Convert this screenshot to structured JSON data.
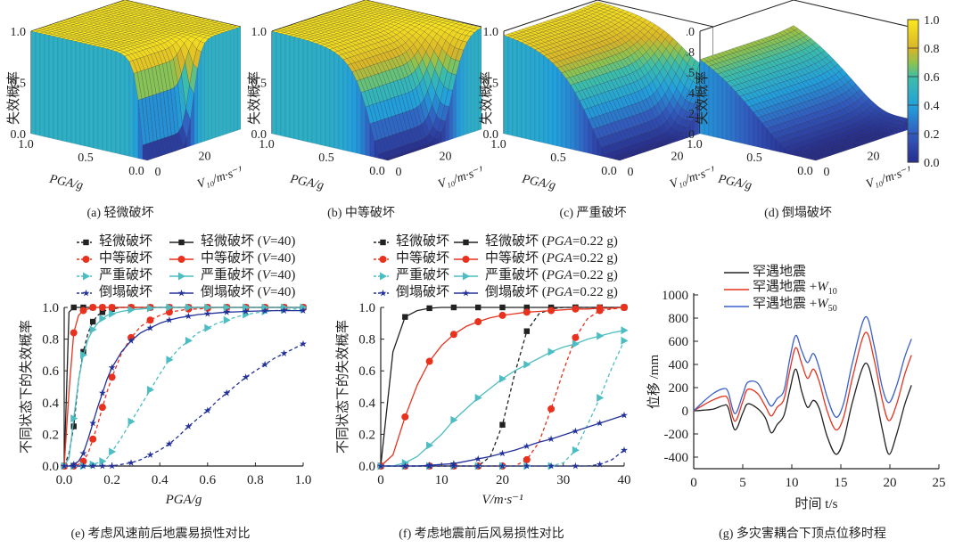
{
  "surface_plots": {
    "z_label": "失效概率",
    "x_label": "PGA/g",
    "y_label": "V₁₀/m·s⁻¹",
    "x_ticks": [
      "1.0",
      "0.5",
      "0.0"
    ],
    "y_ticks": [
      "0",
      "20",
      "40"
    ],
    "z_ticks_abc": [
      "1.0",
      "0.5",
      "0.0"
    ],
    "z_ticks_d": [
      "1.0",
      "0.8",
      "0.5",
      "0.4",
      "0.2",
      "0.0"
    ],
    "panels": [
      {
        "caption": "(a) 轻微破坏",
        "state": "slight"
      },
      {
        "caption": "(b) 中等破坏",
        "state": "moderate"
      },
      {
        "caption": "(c) 严重破坏",
        "state": "extensive"
      },
      {
        "caption": "(d) 倒塌破坏",
        "state": "complete"
      }
    ],
    "colorbar": {
      "ticks": [
        "1.0",
        "0.8",
        "0.6",
        "0.4",
        "0.2",
        "0.0"
      ],
      "colors": [
        "#f9e721",
        "#d9b51c",
        "#9ec640",
        "#3fbcb0",
        "#2aa4dc",
        "#3a6fc4",
        "#27398f"
      ]
    }
  },
  "chart_data": [
    {
      "type": "line",
      "id": "e",
      "title": "(e) 考虑风速前后地震易损性对比",
      "xlabel": "PGA/g",
      "ylabel": "不同状态下的失效概率",
      "xlim": [
        0,
        1.0
      ],
      "ylim": [
        0,
        1.0
      ],
      "x_ticks": [
        "0.0",
        "0.2",
        "0.4",
        "0.6",
        "0.8",
        "1.0"
      ],
      "y_ticks": [
        "0.0",
        "0.2",
        "0.4",
        "0.6",
        "0.8",
        "1.0"
      ],
      "legend_position": "top",
      "x": [
        0,
        0.02,
        0.04,
        0.06,
        0.08,
        0.1,
        0.12,
        0.14,
        0.16,
        0.18,
        0.2,
        0.24,
        0.28,
        0.32,
        0.36,
        0.4,
        0.44,
        0.48,
        0.52,
        0.56,
        0.6,
        0.64,
        0.68,
        0.72,
        0.76,
        0.8,
        0.84,
        0.88,
        0.92,
        0.96,
        1.0
      ],
      "series": [
        {
          "name": "轻微破坏",
          "color": "#222222",
          "dashed": true,
          "marker": "square",
          "values": [
            0,
            0.08,
            0.25,
            0.54,
            0.72,
            0.84,
            0.91,
            0.95,
            0.97,
            0.985,
            0.99,
            1,
            1,
            1,
            1,
            1,
            1,
            1,
            1,
            1,
            1,
            1,
            1,
            1,
            1,
            1,
            1,
            1,
            1,
            1,
            1
          ]
        },
        {
          "name": "中等破坏",
          "color": "#e8321e",
          "dashed": true,
          "marker": "circle",
          "values": [
            0,
            0,
            0,
            0.01,
            0.03,
            0.08,
            0.17,
            0.26,
            0.37,
            0.47,
            0.56,
            0.71,
            0.81,
            0.88,
            0.92,
            0.95,
            0.97,
            0.98,
            0.99,
            0.99,
            0.995,
            1,
            1,
            1,
            1,
            1,
            1,
            1,
            1,
            1,
            1
          ]
        },
        {
          "name": "严重破坏",
          "color": "#4cbdc2",
          "dashed": true,
          "marker": "triangle",
          "values": [
            0,
            0,
            0,
            0,
            0,
            0.01,
            0.01,
            0.02,
            0.03,
            0.05,
            0.09,
            0.18,
            0.28,
            0.38,
            0.48,
            0.58,
            0.67,
            0.74,
            0.79,
            0.84,
            0.87,
            0.9,
            0.92,
            0.94,
            0.955,
            0.965,
            0.975,
            0.98,
            0.985,
            0.99,
            0.99
          ]
        },
        {
          "name": "倒塌破坏",
          "color": "#23319a",
          "dashed": true,
          "marker": "star",
          "values": [
            0,
            0,
            0,
            0,
            0,
            0,
            0,
            0,
            0,
            0,
            0,
            0.01,
            0.02,
            0.04,
            0.07,
            0.1,
            0.14,
            0.19,
            0.25,
            0.3,
            0.35,
            0.41,
            0.46,
            0.51,
            0.56,
            0.6,
            0.64,
            0.68,
            0.71,
            0.74,
            0.77
          ]
        },
        {
          "name": "轻微破坏 (V=40)",
          "color": "#222222",
          "dashed": false,
          "marker": "square",
          "values": [
            0,
            0.97,
            1,
            1,
            1,
            1,
            1,
            1,
            1,
            1,
            1,
            1,
            1,
            1,
            1,
            1,
            1,
            1,
            1,
            1,
            1,
            1,
            1,
            1,
            1,
            1,
            1,
            1,
            1,
            1,
            1
          ]
        },
        {
          "name": "中等破坏 (V=40)",
          "color": "#e8321e",
          "dashed": false,
          "marker": "circle",
          "values": [
            0,
            0.47,
            0.84,
            0.95,
            0.98,
            0.99,
            1,
            1,
            1,
            1,
            1,
            1,
            1,
            1,
            1,
            1,
            1,
            1,
            1,
            1,
            1,
            1,
            1,
            1,
            1,
            1,
            1,
            1,
            1,
            1,
            1
          ]
        },
        {
          "name": "严重破坏 (V=40)",
          "color": "#4cbdc2",
          "dashed": false,
          "marker": "triangle",
          "values": [
            0,
            0.05,
            0.3,
            0.54,
            0.7,
            0.8,
            0.86,
            0.9,
            0.93,
            0.95,
            0.96,
            0.975,
            0.985,
            0.99,
            0.995,
            1,
            1,
            1,
            1,
            1,
            1,
            1,
            1,
            1,
            1,
            1,
            1,
            1,
            1,
            1,
            1
          ]
        },
        {
          "name": "倒塌破坏 (V=40)",
          "color": "#23319a",
          "dashed": false,
          "marker": "star",
          "values": [
            0,
            0,
            0.01,
            0.03,
            0.08,
            0.17,
            0.27,
            0.37,
            0.46,
            0.55,
            0.62,
            0.72,
            0.79,
            0.84,
            0.87,
            0.9,
            0.92,
            0.935,
            0.945,
            0.955,
            0.96,
            0.965,
            0.97,
            0.972,
            0.975,
            0.977,
            0.978,
            0.98,
            0.98,
            0.98,
            0.98
          ]
        }
      ]
    },
    {
      "type": "line",
      "id": "f",
      "title": "(f) 考虑地震前后风易损性对比",
      "xlabel": "V/m·s⁻¹",
      "ylabel": "不同状态下的失效概率",
      "xlim": [
        0,
        40
      ],
      "ylim": [
        0,
        1.0
      ],
      "x_ticks": [
        "0",
        "10",
        "20",
        "30",
        "40"
      ],
      "y_ticks": [
        "0.0",
        "0.2",
        "0.4",
        "0.6",
        "0.8",
        "1.0"
      ],
      "legend_position": "top",
      "x": [
        0,
        2,
        4,
        6,
        8,
        10,
        12,
        14,
        16,
        18,
        20,
        22,
        24,
        26,
        28,
        30,
        32,
        34,
        36,
        38,
        40
      ],
      "series": [
        {
          "name": "轻微破坏",
          "color": "#222222",
          "dashed": true,
          "marker": "square",
          "values": [
            0,
            0,
            0,
            0,
            0,
            0,
            0,
            0,
            0,
            0.06,
            0.26,
            0.58,
            0.85,
            0.96,
            0.99,
            1,
            1,
            1,
            1,
            1,
            1
          ]
        },
        {
          "name": "中等破坏",
          "color": "#e8321e",
          "dashed": true,
          "marker": "circle",
          "values": [
            0,
            0,
            0,
            0,
            0,
            0,
            0,
            0,
            0,
            0,
            0,
            0,
            0.04,
            0.15,
            0.36,
            0.6,
            0.81,
            0.93,
            0.98,
            0.99,
            1
          ]
        },
        {
          "name": "严重破坏",
          "color": "#4cbdc2",
          "dashed": true,
          "marker": "triangle",
          "values": [
            0,
            0,
            0,
            0,
            0,
            0,
            0,
            0,
            0,
            0,
            0,
            0,
            0,
            0,
            0,
            0.02,
            0.1,
            0.26,
            0.43,
            0.62,
            0.79
          ]
        },
        {
          "name": "倒塌破坏",
          "color": "#23319a",
          "dashed": true,
          "marker": "star",
          "values": [
            0,
            0,
            0,
            0,
            0,
            0,
            0,
            0,
            0,
            0,
            0,
            0,
            0,
            0,
            0,
            0,
            0,
            0,
            0.01,
            0.04,
            0.1
          ]
        },
        {
          "name": "轻微破坏 (PGA=0.22 g)",
          "color": "#222222",
          "dashed": false,
          "marker": "square",
          "values": [
            0,
            0.72,
            0.94,
            0.98,
            0.995,
            1,
            1,
            1,
            1,
            1,
            1,
            1,
            1,
            1,
            1,
            1,
            1,
            1,
            1,
            1,
            1
          ]
        },
        {
          "name": "中等破坏 (PGA=0.22 g)",
          "color": "#e8321e",
          "dashed": false,
          "marker": "circle",
          "values": [
            0,
            0.07,
            0.31,
            0.51,
            0.66,
            0.76,
            0.83,
            0.88,
            0.91,
            0.935,
            0.95,
            0.96,
            0.97,
            0.975,
            0.98,
            0.985,
            0.99,
            0.99,
            0.995,
            0.995,
            1
          ]
        },
        {
          "name": "严重破坏 (PGA=0.22 g)",
          "color": "#4cbdc2",
          "dashed": false,
          "marker": "triangle",
          "values": [
            0,
            0,
            0.02,
            0.06,
            0.13,
            0.2,
            0.29,
            0.36,
            0.43,
            0.49,
            0.55,
            0.6,
            0.64,
            0.68,
            0.72,
            0.75,
            0.77,
            0.8,
            0.82,
            0.84,
            0.855
          ]
        },
        {
          "name": "倒塌破坏 (PGA=0.22 g)",
          "color": "#23319a",
          "dashed": false,
          "marker": "star",
          "values": [
            0,
            0,
            0,
            0,
            0.005,
            0.01,
            0.015,
            0.03,
            0.045,
            0.06,
            0.08,
            0.1,
            0.125,
            0.15,
            0.17,
            0.195,
            0.22,
            0.245,
            0.27,
            0.295,
            0.32
          ]
        }
      ]
    },
    {
      "type": "line",
      "id": "g",
      "title": "(g) 多灾害耦合下顶点位移时程",
      "xlabel": "时间 t/s",
      "ylabel": "位移 /mm",
      "xlim": [
        0,
        25
      ],
      "ylim": [
        -500,
        1000
      ],
      "x_ticks": [
        "0",
        "5",
        "10",
        "15",
        "20",
        "25"
      ],
      "y_ticks": [
        "-400",
        "-200",
        "0",
        "200",
        "400",
        "600",
        "800",
        "1000"
      ],
      "legend_position": "top-left",
      "x": [
        0,
        1,
        2,
        3,
        3.5,
        4.2,
        5,
        5.5,
        6.5,
        7.3,
        7.9,
        8.5,
        9.2,
        9.8,
        10.4,
        11,
        11.6,
        12.2,
        12.8,
        13.6,
        14.5,
        15.3,
        16.2,
        17.5,
        18.4,
        19.2,
        19.9,
        20.7,
        21.5,
        22.2
      ],
      "series": [
        {
          "name": "罕遇地震",
          "color": "#222222",
          "values": [
            0,
            5,
            15,
            45,
            30,
            -165,
            -20,
            60,
            20,
            -60,
            -190,
            -120,
            -40,
            180,
            360,
            170,
            30,
            90,
            20,
            -220,
            -375,
            -250,
            80,
            410,
            190,
            -150,
            -375,
            -200,
            50,
            220
          ]
        },
        {
          "name": "罕遇地震+W10",
          "color": "#e8321e",
          "values": [
            0,
            50,
            95,
            125,
            100,
            -90,
            80,
            185,
            150,
            40,
            -45,
            30,
            100,
            350,
            545,
            410,
            280,
            360,
            250,
            0,
            -165,
            -50,
            290,
            675,
            440,
            100,
            -85,
            60,
            310,
            480
          ]
        },
        {
          "name": "罕遇地震+W50",
          "color": "#3a5fc8",
          "values": [
            0,
            80,
            150,
            190,
            165,
            -25,
            140,
            245,
            240,
            120,
            40,
            105,
            175,
            450,
            650,
            520,
            415,
            495,
            370,
            120,
            -55,
            70,
            420,
            810,
            560,
            210,
            70,
            220,
            460,
            620
          ]
        }
      ],
      "legend_labels": [
        {
          "main": "罕遇地震",
          "sub": ""
        },
        {
          "main": "罕遇地震 +W",
          "sub": "10"
        },
        {
          "main": "罕遇地震 +W",
          "sub": "50"
        }
      ]
    }
  ]
}
